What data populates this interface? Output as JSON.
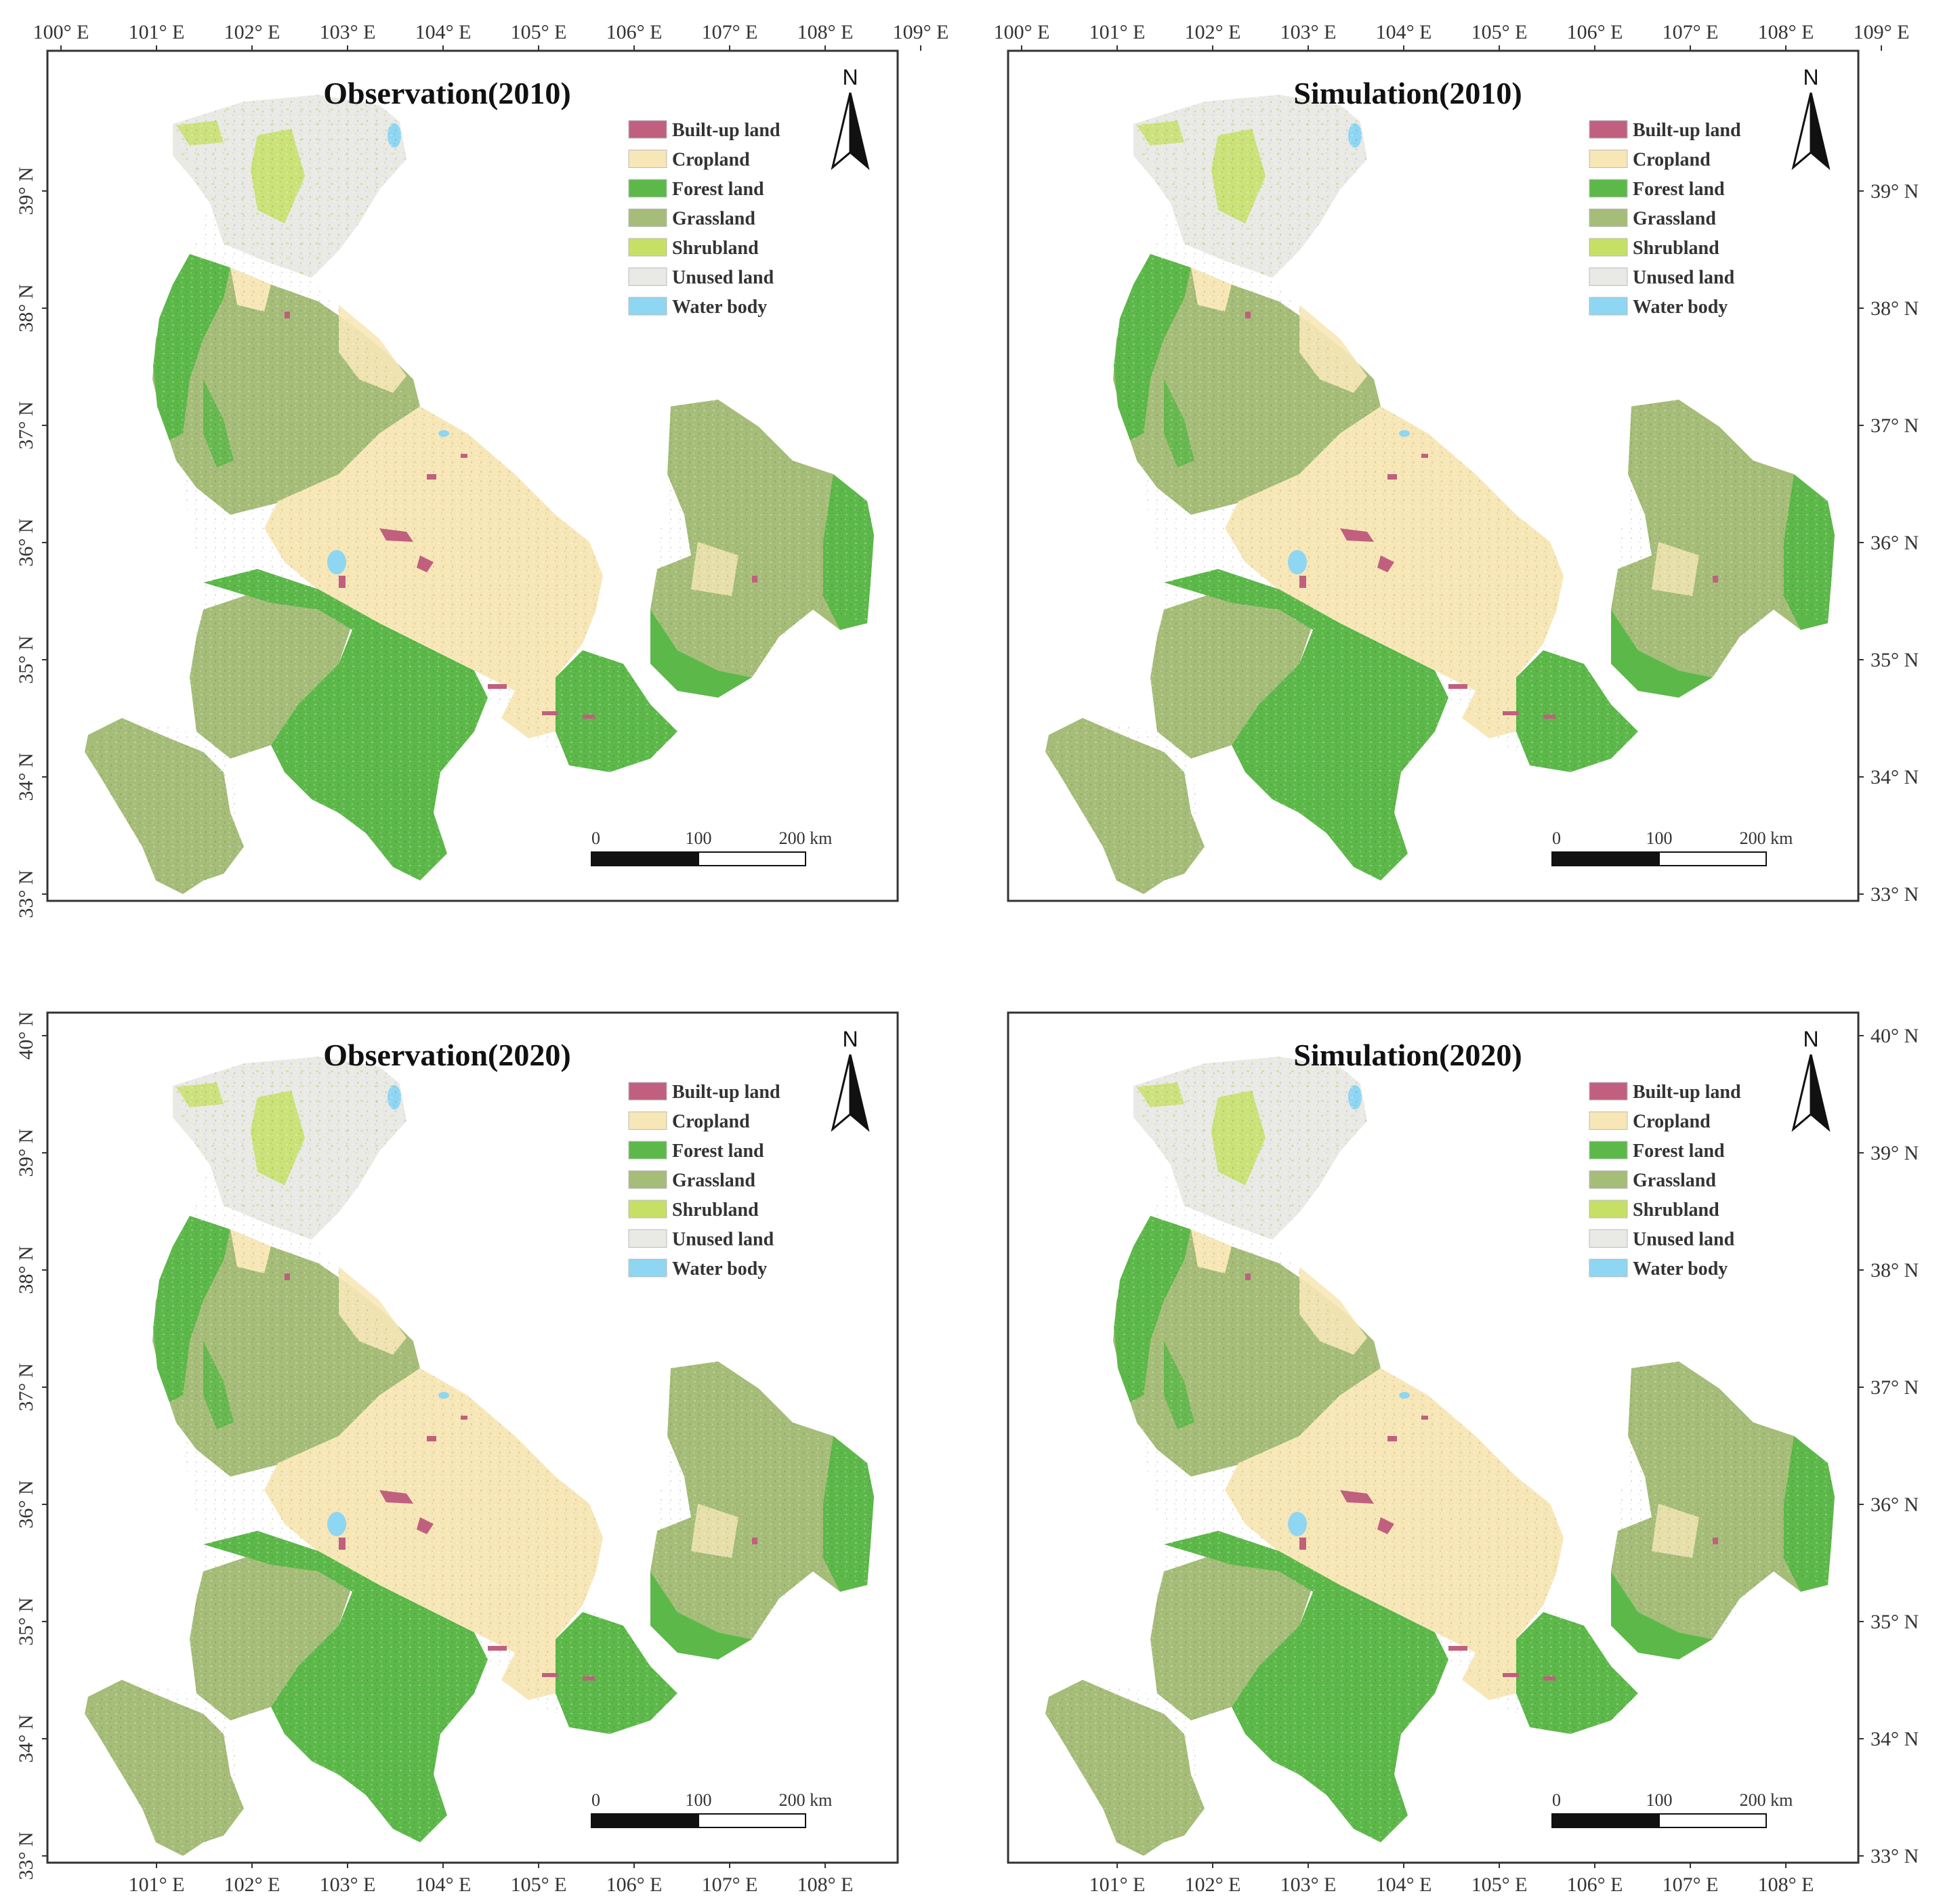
{
  "panels": [
    {
      "title": "Observation(2010)",
      "lon_ticks": [
        "100° E",
        "101° E",
        "102° E",
        "103° E",
        "104° E",
        "105° E",
        "106° E",
        "107° E",
        "108° E",
        "109° E"
      ],
      "lon_ticks_position": "top",
      "lat_ticks": [
        "33° N",
        "34° N",
        "35° N",
        "36° N",
        "37° N",
        "38° N",
        "39° N"
      ],
      "lat_ticks_position": "left"
    },
    {
      "title": "Simulation(2010)",
      "lon_ticks": [
        "100° E",
        "101° E",
        "102° E",
        "103° E",
        "104° E",
        "105° E",
        "106° E",
        "107° E",
        "108° E",
        "109° E"
      ],
      "lon_ticks_position": "top",
      "lat_ticks": [
        "33° N",
        "34° N",
        "35° N",
        "36° N",
        "37° N",
        "38° N",
        "39° N"
      ],
      "lat_ticks_position": "right"
    },
    {
      "title": "Observation(2020)",
      "lon_ticks": [
        "101° E",
        "102° E",
        "103° E",
        "104° E",
        "105° E",
        "106° E",
        "107° E",
        "108° E"
      ],
      "lon_ticks_position": "bottom",
      "lat_ticks": [
        "33° N",
        "34° N",
        "35° N",
        "36° N",
        "37° N",
        "38° N",
        "39° N",
        "40° N"
      ],
      "lat_ticks_position": "left"
    },
    {
      "title": "Simulation(2020)",
      "lon_ticks": [
        "101° E",
        "102° E",
        "103° E",
        "104° E",
        "105° E",
        "106° E",
        "107° E",
        "108° E"
      ],
      "lon_ticks_position": "bottom",
      "lat_ticks": [
        "33° N",
        "34° N",
        "35° N",
        "36° N",
        "37° N",
        "38° N",
        "39° N",
        "40° N"
      ],
      "lat_ticks_position": "right"
    }
  ],
  "legend": [
    {
      "label": "Built-up land",
      "color": "#c0607e"
    },
    {
      "label": "Cropland",
      "color": "#f7e7b7"
    },
    {
      "label": "Forest land",
      "color": "#5db84a"
    },
    {
      "label": "Grassland",
      "color": "#a5bd78"
    },
    {
      "label": "Shrubland",
      "color": "#c6e065"
    },
    {
      "label": "Unused land",
      "color": "#e9e9e6"
    },
    {
      "label": "Water body",
      "color": "#8fd6f2"
    }
  ],
  "scale_bar": {
    "labels": [
      "0",
      "100",
      "200 km"
    ]
  },
  "north_arrow": {
    "label": "N"
  }
}
